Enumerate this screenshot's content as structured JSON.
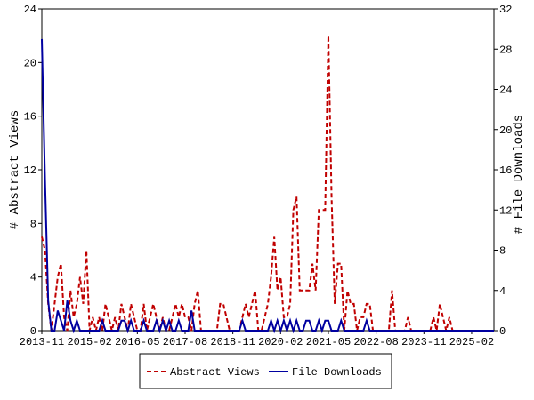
{
  "chart_data": {
    "type": "line",
    "x": [
      "2013-11",
      "2013-12",
      "2014-01",
      "2014-02",
      "2014-03",
      "2014-04",
      "2014-05",
      "2014-06",
      "2014-07",
      "2014-08",
      "2014-09",
      "2014-10",
      "2014-11",
      "2014-12",
      "2015-01",
      "2015-02",
      "2015-03",
      "2015-04",
      "2015-05",
      "2015-06",
      "2015-07",
      "2015-08",
      "2015-09",
      "2015-10",
      "2015-11",
      "2015-12",
      "2016-01",
      "2016-02",
      "2016-03",
      "2016-04",
      "2016-05",
      "2016-06",
      "2016-07",
      "2016-08",
      "2016-09",
      "2016-10",
      "2016-11",
      "2016-12",
      "2017-01",
      "2017-02",
      "2017-03",
      "2017-04",
      "2017-05",
      "2017-06",
      "2017-07",
      "2017-08",
      "2017-09",
      "2017-10",
      "2017-11",
      "2017-12",
      "2018-01",
      "2018-02",
      "2018-03",
      "2018-04",
      "2018-05",
      "2018-06",
      "2018-07",
      "2018-08",
      "2018-09",
      "2018-10",
      "2018-11",
      "2018-12",
      "2019-01",
      "2019-02",
      "2019-03",
      "2019-04",
      "2019-05",
      "2019-06",
      "2019-07",
      "2019-08",
      "2019-09",
      "2019-10",
      "2019-11",
      "2019-12",
      "2020-01",
      "2020-02",
      "2020-03",
      "2020-04",
      "2020-05",
      "2020-06",
      "2020-07",
      "2020-08",
      "2020-09",
      "2020-10",
      "2020-11",
      "2020-12",
      "2021-01",
      "2021-02",
      "2021-03",
      "2021-04",
      "2021-05",
      "2021-06",
      "2021-07",
      "2021-08",
      "2021-09",
      "2021-10",
      "2021-11",
      "2021-12",
      "2022-01",
      "2022-02",
      "2022-03",
      "2022-04",
      "2022-05",
      "2022-06",
      "2022-07",
      "2022-08",
      "2022-09",
      "2022-10",
      "2022-11",
      "2022-12",
      "2023-01",
      "2023-02",
      "2023-03",
      "2023-04",
      "2023-05",
      "2023-06",
      "2023-07",
      "2023-08",
      "2023-09",
      "2023-10",
      "2023-11",
      "2023-12",
      "2024-01",
      "2024-02",
      "2024-03",
      "2024-04",
      "2024-05",
      "2024-06",
      "2024-07",
      "2024-08",
      "2024-09",
      "2024-10",
      "2024-11",
      "2024-12",
      "2025-01",
      "2025-02",
      "2025-03",
      "2025-04",
      "2025-05",
      "2025-06",
      "2025-07",
      "2025-08",
      "2025-09"
    ],
    "series": [
      {
        "name": "Abstract Views",
        "color": "#c00000",
        "dash": true,
        "axis": "y",
        "values": [
          7,
          6,
          2,
          0,
          2,
          4,
          5,
          1,
          0,
          3,
          1,
          2,
          4,
          2,
          6,
          0,
          1,
          0,
          1,
          0,
          2,
          1,
          0,
          1,
          0,
          2,
          1,
          0,
          2,
          1,
          0,
          0,
          2,
          0,
          1,
          2,
          1,
          0,
          1,
          0,
          0,
          1,
          2,
          1,
          2,
          1,
          1,
          0,
          2,
          3,
          0,
          0,
          0,
          0,
          0,
          0,
          2,
          2,
          1,
          0,
          0,
          0,
          0,
          1,
          2,
          1,
          2,
          3,
          0,
          0,
          1,
          2,
          4,
          7,
          3,
          4,
          1,
          1,
          2,
          9,
          10,
          3,
          3,
          3,
          3,
          5,
          3,
          9,
          9,
          9,
          22,
          10,
          2,
          5,
          5,
          0,
          3,
          2,
          2,
          0,
          1,
          1,
          2,
          2,
          0,
          0,
          0,
          0,
          0,
          0,
          3,
          0,
          0,
          0,
          0,
          1,
          0,
          0,
          0,
          0,
          0,
          0,
          0,
          1,
          0,
          2,
          1,
          0,
          1,
          0,
          0,
          0,
          0,
          0,
          0,
          0,
          0,
          0,
          0,
          0,
          0,
          0,
          0
        ]
      },
      {
        "name": "File Downloads",
        "color": "#0000a0",
        "dash": false,
        "axis": "y2",
        "values": [
          29,
          15,
          3,
          0,
          0,
          2,
          1,
          0,
          3,
          1,
          0,
          1,
          0,
          0,
          0,
          0,
          0,
          0,
          0,
          1,
          0,
          0,
          0,
          0,
          0,
          1,
          1,
          0,
          1,
          0,
          0,
          0,
          1,
          0,
          0,
          0,
          1,
          0,
          1,
          0,
          1,
          0,
          0,
          1,
          0,
          0,
          0,
          2,
          0,
          0,
          0,
          0,
          0,
          0,
          0,
          0,
          0,
          0,
          0,
          0,
          0,
          0,
          0,
          1,
          0,
          0,
          0,
          0,
          0,
          0,
          0,
          0,
          1,
          0,
          1,
          0,
          1,
          0,
          1,
          0,
          1,
          0,
          0,
          1,
          1,
          0,
          0,
          1,
          0,
          1,
          1,
          0,
          0,
          0,
          1,
          0,
          0,
          0,
          0,
          0,
          0,
          0,
          1,
          0,
          0,
          0,
          0,
          0,
          0,
          0,
          0,
          0,
          0,
          0,
          0,
          0,
          0,
          0,
          0,
          0,
          0,
          0,
          0,
          0,
          0,
          0,
          0,
          0,
          0,
          0,
          0,
          0,
          0,
          0,
          0,
          0,
          0,
          0,
          0,
          0,
          0,
          0,
          0
        ]
      }
    ],
    "xlim": [
      "2013-11",
      "2025-09"
    ],
    "xticks": [
      "2013-11",
      "2015-02",
      "2016-05",
      "2017-08",
      "2018-11",
      "2020-02",
      "2021-05",
      "2022-08",
      "2023-11",
      "2025-02"
    ],
    "ylim": [
      0,
      24
    ],
    "yticks": [
      0,
      4,
      8,
      12,
      16,
      20,
      24
    ],
    "y2lim": [
      0,
      32
    ],
    "y2ticks": [
      0,
      4,
      8,
      12,
      16,
      20,
      24,
      28,
      32
    ],
    "ylabel": "# Abstract Views",
    "y2label": "# File Downloads"
  }
}
